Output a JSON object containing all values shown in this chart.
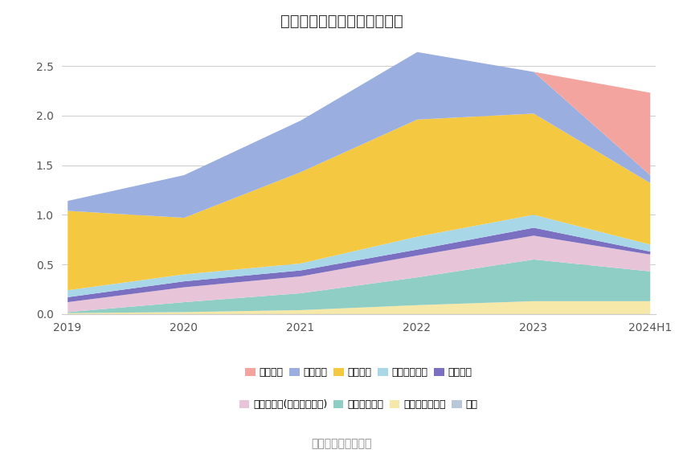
{
  "title": "历年主要负债堆积图（亿元）",
  "source": "数据来源：恒生聚源",
  "years": [
    "2019",
    "2020",
    "2021",
    "2022",
    "2023",
    "2024H1"
  ],
  "series": [
    {
      "name": "其它",
      "color": "#B8C8D8",
      "values": [
        0.005,
        0.005,
        0.005,
        0.005,
        0.005,
        0.005
      ]
    },
    {
      "name": "递延所得税负债",
      "color": "#F5E8A8",
      "values": [
        0.01,
        0.02,
        0.04,
        0.09,
        0.13,
        0.13
      ]
    },
    {
      "name": "其他流动负债",
      "color": "#8ECEC4",
      "values": [
        0.01,
        0.1,
        0.17,
        0.28,
        0.42,
        0.3
      ]
    },
    {
      "name": "其他应付款(含利息和股利)",
      "color": "#E8C4D8",
      "values": [
        0.1,
        0.15,
        0.17,
        0.22,
        0.24,
        0.17
      ]
    },
    {
      "name": "应交税费",
      "color": "#7A6FC0",
      "values": [
        0.05,
        0.06,
        0.06,
        0.06,
        0.08,
        0.03
      ]
    },
    {
      "name": "应付职工薪酬",
      "color": "#A8D8E8",
      "values": [
        0.07,
        0.07,
        0.07,
        0.13,
        0.13,
        0.07
      ]
    },
    {
      "name": "应付账款",
      "color": "#F5C842",
      "values": [
        0.8,
        0.57,
        0.92,
        1.18,
        1.02,
        0.62
      ]
    },
    {
      "name": "应付票据",
      "color": "#9BAEE0",
      "values": [
        0.1,
        0.43,
        0.52,
        0.68,
        0.42,
        0.08
      ]
    },
    {
      "name": "短期借款",
      "color": "#F4A49E",
      "values": [
        0.0,
        0.0,
        0.0,
        0.0,
        0.0,
        0.83
      ]
    }
  ],
  "legend_order": [
    {
      "name": "短期借款",
      "color": "#F4A49E"
    },
    {
      "name": "应付票据",
      "color": "#9BAEE0"
    },
    {
      "name": "应付账款",
      "color": "#F5C842"
    },
    {
      "name": "应付职工薪酬",
      "color": "#A8D8E8"
    },
    {
      "name": "应交税费",
      "color": "#7A6FC0"
    },
    {
      "name": "其他应付款(含利息和股利)",
      "color": "#E8C4D8"
    },
    {
      "name": "其他流动负债",
      "color": "#8ECEC4"
    },
    {
      "name": "递延所得税负债",
      "color": "#F5E8A8"
    },
    {
      "name": "其它",
      "color": "#B8C8D8"
    }
  ],
  "ylim": [
    0,
    2.7
  ],
  "yticks": [
    0,
    0.5,
    1.0,
    1.5,
    2.0,
    2.5
  ],
  "bg_color": "#FFFFFF",
  "grid_color": "#CCCCCC",
  "title_fontsize": 14,
  "legend_fontsize": 9,
  "source_fontsize": 10
}
